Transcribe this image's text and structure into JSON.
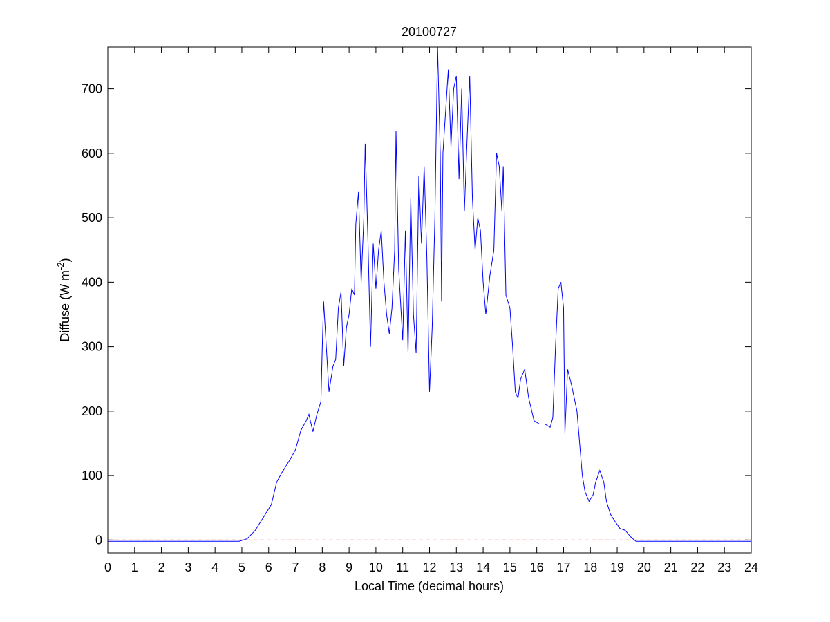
{
  "chart_data": {
    "type": "line",
    "title": "20100727",
    "xlabel": "Local Time (decimal hours)",
    "ylabel": {
      "text": "Diffuse (W m",
      "superscript": "-2",
      "suffix": ")"
    },
    "x": [
      0,
      4.9,
      5.2,
      5.5,
      5.8,
      6.1,
      6.3,
      6.5,
      6.8,
      7.0,
      7.2,
      7.4,
      7.5,
      7.65,
      7.8,
      7.95,
      8.0,
      8.05,
      8.15,
      8.25,
      8.4,
      8.5,
      8.6,
      8.7,
      8.8,
      8.9,
      9.0,
      9.1,
      9.2,
      9.25,
      9.35,
      9.45,
      9.55,
      9.6,
      9.7,
      9.8,
      9.9,
      10.0,
      10.1,
      10.2,
      10.3,
      10.4,
      10.5,
      10.6,
      10.7,
      10.75,
      10.85,
      11.0,
      11.1,
      11.2,
      11.3,
      11.4,
      11.5,
      11.6,
      11.7,
      11.8,
      11.9,
      12.0,
      12.1,
      12.2,
      12.3,
      12.4,
      12.45,
      12.5,
      12.7,
      12.8,
      12.9,
      13.0,
      13.1,
      13.2,
      13.3,
      13.4,
      13.5,
      13.6,
      13.7,
      13.8,
      13.9,
      14.0,
      14.1,
      14.25,
      14.4,
      14.5,
      14.6,
      14.7,
      14.75,
      14.85,
      15.0,
      15.1,
      15.2,
      15.3,
      15.4,
      15.55,
      15.7,
      15.9,
      16.1,
      16.3,
      16.5,
      16.6,
      16.7,
      16.8,
      16.9,
      17.0,
      17.05,
      17.15,
      17.3,
      17.4,
      17.5,
      17.6,
      17.7,
      17.8,
      17.95,
      18.1,
      18.2,
      18.35,
      18.5,
      18.6,
      18.75,
      18.9,
      19.1,
      19.3,
      19.5,
      19.7,
      24
    ],
    "values": [
      -2,
      -2,
      2,
      15,
      35,
      55,
      90,
      105,
      125,
      140,
      170,
      185,
      195,
      168,
      195,
      215,
      300,
      370,
      300,
      230,
      270,
      280,
      360,
      385,
      270,
      330,
      350,
      390,
      380,
      490,
      540,
      400,
      500,
      615,
      470,
      300,
      460,
      390,
      450,
      480,
      400,
      350,
      320,
      360,
      450,
      635,
      420,
      310,
      480,
      290,
      530,
      350,
      290,
      565,
      460,
      580,
      440,
      230,
      330,
      500,
      765,
      600,
      370,
      600,
      730,
      610,
      700,
      720,
      560,
      700,
      510,
      620,
      720,
      530,
      450,
      500,
      480,
      400,
      350,
      410,
      450,
      600,
      580,
      510,
      580,
      380,
      360,
      300,
      230,
      220,
      250,
      265,
      220,
      185,
      180,
      180,
      175,
      190,
      300,
      390,
      400,
      360,
      165,
      265,
      240,
      220,
      200,
      150,
      100,
      75,
      60,
      70,
      90,
      108,
      90,
      60,
      40,
      30,
      18,
      15,
      5,
      -2,
      -2
    ],
    "color": "#0000ff",
    "reference_line": {
      "value": 0,
      "color": "#ff0000"
    },
    "xlim": [
      0,
      24
    ],
    "xticks": [
      0,
      1,
      2,
      3,
      4,
      5,
      6,
      7,
      8,
      9,
      10,
      11,
      12,
      13,
      14,
      15,
      16,
      17,
      18,
      19,
      20,
      21,
      22,
      23,
      24
    ],
    "ylim": [
      -20,
      765
    ],
    "yticks": [
      0,
      100,
      200,
      300,
      400,
      500,
      600,
      700
    ]
  }
}
